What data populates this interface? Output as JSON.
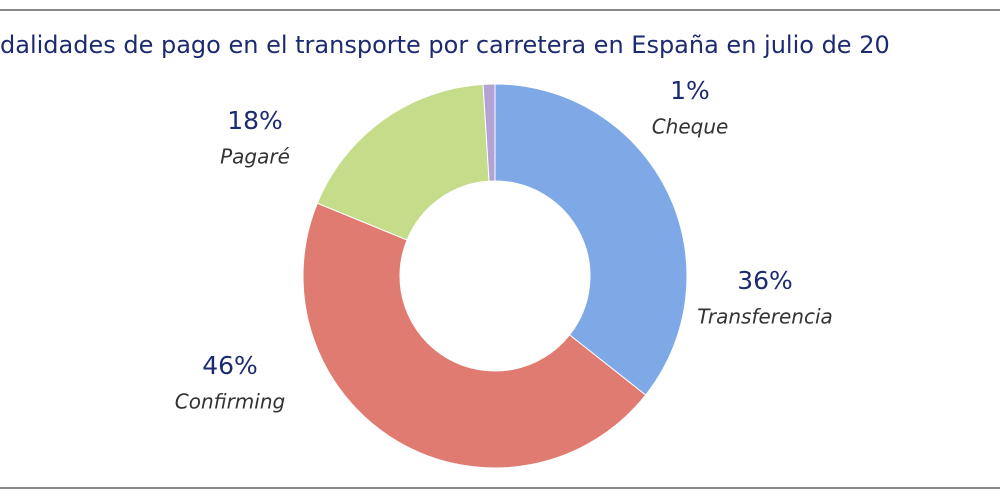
{
  "chart_data": {
    "type": "donut",
    "title": "dalidades de pago en el transporte por carretera en España en julio de 20",
    "categories": [
      "Transferencia",
      "Confirming",
      "Pagaré",
      "Cheque"
    ],
    "values": [
      36,
      46,
      18,
      1
    ],
    "value_labels": [
      "36%",
      "46%",
      "18%",
      "1%"
    ],
    "colors": [
      "#7ea9e6",
      "#e07b72",
      "#c5dc8a",
      "#b3a2d6"
    ]
  }
}
